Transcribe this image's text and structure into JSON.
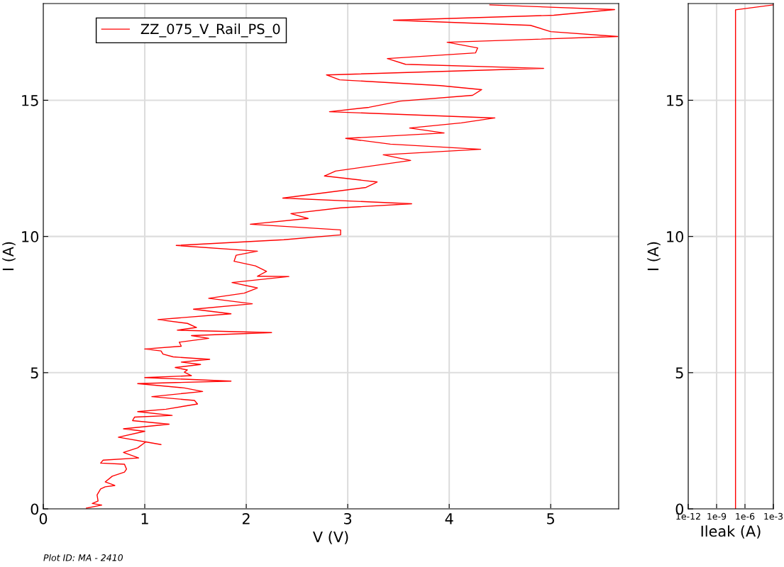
{
  "chart_data": [
    {
      "type": "line",
      "xlabel": "V (V)",
      "ylabel": "I (A)",
      "xlim": [
        0,
        5.67
      ],
      "ylim": [
        0,
        18.55
      ],
      "xticks": [
        0,
        1,
        2,
        3,
        4,
        5
      ],
      "yticks": [
        0,
        5,
        10,
        15
      ],
      "grid": true,
      "legend": "top left",
      "annotations": [
        "Plot ID: MA - 2410"
      ],
      "series": [
        {
          "name": "ZZ_075_V_Rail_PS_0",
          "color": "#ff0000",
          "x": [
            0.425,
            0.576,
            0.483,
            0.54,
            0.53,
            0.565,
            0.61,
            0.705,
            0.61,
            0.68,
            0.8,
            0.82,
            0.8,
            0.565,
            0.59,
            0.94,
            0.79,
            0.93,
            1.01,
            1.16,
            0.74,
            1.0,
            0.79,
            1.24,
            0.88,
            0.9,
            1.27,
            0.93,
            1.21,
            1.52,
            1.49,
            1.07,
            1.57,
            1.39,
            0.93,
            1.85,
            1.0,
            1.46,
            1.39,
            1.42,
            1.3,
            1.55,
            1.36,
            1.64,
            1.28,
            1.18,
            1.16,
            1.0,
            1.36,
            1.34,
            1.63,
            1.46,
            2.25,
            1.32,
            1.51,
            1.42,
            1.13,
            1.85,
            1.48,
            2.06,
            1.63,
            1.98,
            2.11,
            1.86,
            2.42,
            2.11,
            2.2,
            2.09,
            1.88,
            1.9,
            2.11,
            1.31,
            2.37,
            2.93,
            2.93,
            2.04,
            2.61,
            2.44,
            2.93,
            3.63,
            2.36,
            3.18,
            3.29,
            2.77,
            2.88,
            3.62,
            3.35,
            4.31,
            3.42,
            2.98,
            3.95,
            3.61,
            4.12,
            4.45,
            2.82,
            3.21,
            3.52,
            4.23,
            4.32,
            3.91,
            2.92,
            2.79,
            4.93,
            3.57,
            3.39,
            4.26,
            4.28,
            3.98,
            5.66,
            5.0,
            4.8,
            3.45,
            5.03,
            5.63,
            4.4
          ],
          "values": [
            0.03,
            0.14,
            0.2,
            0.29,
            0.51,
            0.73,
            0.81,
            0.86,
            0.99,
            1.2,
            1.35,
            1.46,
            1.64,
            1.68,
            1.79,
            1.87,
            2.07,
            2.24,
            2.46,
            2.36,
            2.63,
            2.85,
            2.94,
            3.11,
            3.24,
            3.37,
            3.43,
            3.57,
            3.66,
            3.85,
            3.98,
            4.12,
            4.31,
            4.44,
            4.6,
            4.69,
            4.82,
            4.89,
            5.02,
            5.1,
            5.19,
            5.3,
            5.39,
            5.49,
            5.58,
            5.68,
            5.8,
            5.87,
            5.97,
            6.12,
            6.26,
            6.36,
            6.47,
            6.56,
            6.66,
            6.81,
            6.95,
            7.16,
            7.33,
            7.53,
            7.73,
            7.92,
            8.11,
            8.31,
            8.53,
            8.54,
            8.72,
            8.92,
            9.09,
            9.31,
            9.46,
            9.67,
            9.88,
            10.06,
            10.24,
            10.45,
            10.66,
            10.84,
            11.05,
            11.2,
            11.41,
            11.8,
            12.0,
            12.22,
            12.4,
            12.79,
            13.0,
            13.2,
            13.39,
            13.6,
            13.8,
            13.98,
            14.17,
            14.35,
            14.58,
            14.74,
            14.97,
            15.18,
            15.39,
            15.54,
            15.75,
            15.93,
            16.17,
            16.32,
            16.53,
            16.74,
            16.92,
            17.13,
            17.34,
            17.52,
            17.75,
            17.94,
            18.12,
            18.33,
            18.5
          ]
        }
      ]
    },
    {
      "type": "line",
      "xlabel": "Ileak (A)",
      "ylabel": "I (A)",
      "log": "x",
      "xlim": [
        1e-12,
        0.001
      ],
      "ylim": [
        0,
        18.55
      ],
      "xticks": [
        {
          "value": 1e-12,
          "label": "1e-12"
        },
        {
          "value": 1e-09,
          "label": "1e-9"
        },
        {
          "value": 1e-06,
          "label": "1e-6"
        },
        {
          "value": 0.001,
          "label": "1e-3"
        }
      ],
      "yticks": [
        0,
        5,
        10,
        15
      ],
      "grid": true,
      "series": [
        {
          "color": "#ff0000",
          "x": [
            1e-07,
            1e-07,
            0.001
          ],
          "values": [
            0,
            18.32,
            18.5
          ]
        }
      ]
    }
  ]
}
